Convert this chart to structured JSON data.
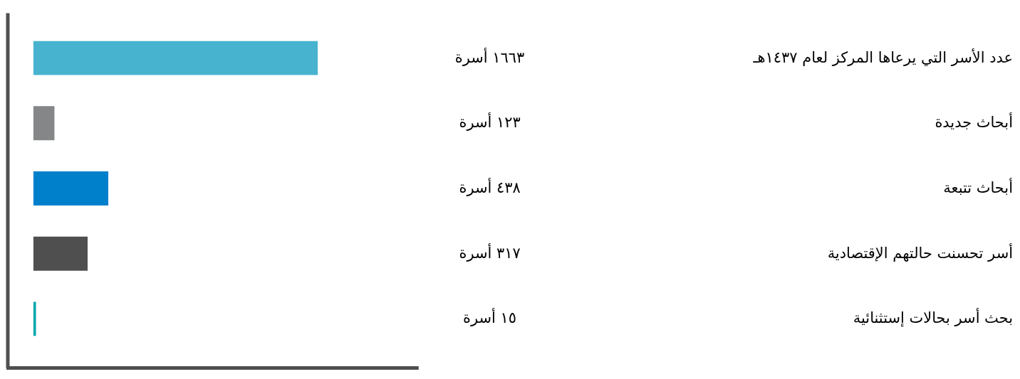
{
  "chart_data": {
    "type": "bar",
    "orientation": "horizontal",
    "categories": [
      "عدد الأسر التي يرعاها المركز لعام ١٤٣٧هـ",
      "أبحاث جديدة",
      "أبحاث تتبعة",
      "أسر تحسنت حالتهم الإقتصادية",
      "بحث أسر بحالات إستثنائية"
    ],
    "values": [
      1663,
      123,
      438,
      317,
      15
    ],
    "colors": [
      "#48b3cf",
      "#848688",
      "#0080cb",
      "#4f4f4f",
      "#00a8ad"
    ],
    "value_labels": [
      "١٦٦٣ أسرة",
      "١٢٣ أسرة",
      "٤٣٨ أسرة",
      "٣١٧ أسرة",
      "١٥ أسرة"
    ]
  }
}
